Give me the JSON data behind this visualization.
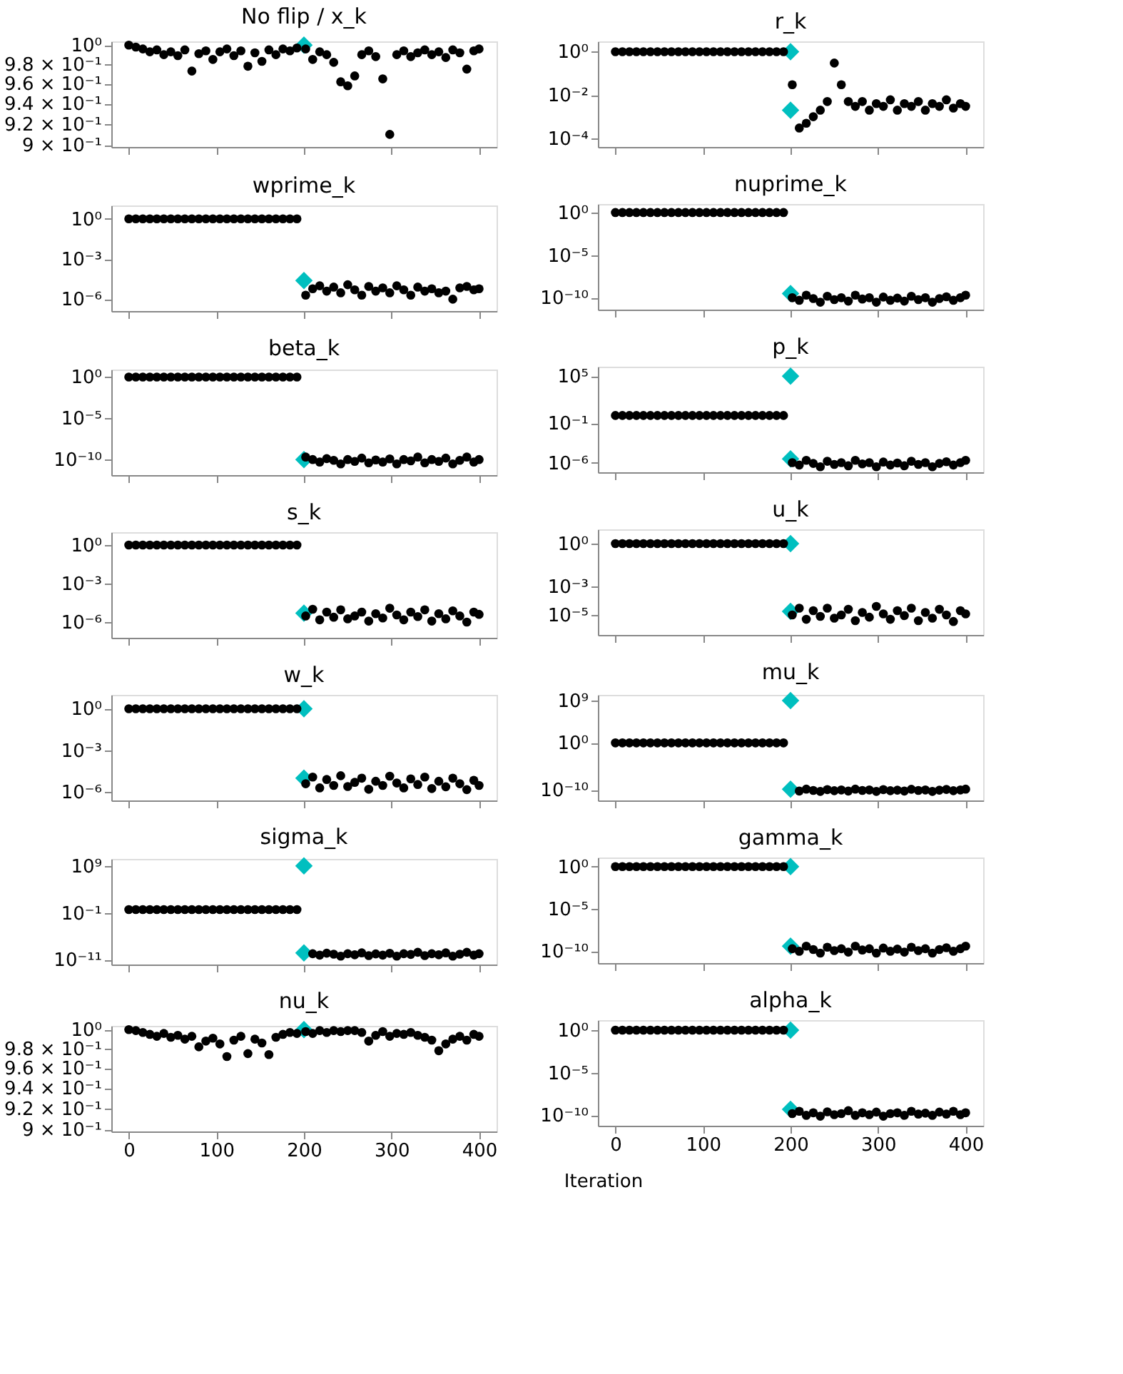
{
  "chart_data": [
    {
      "type": "scatter",
      "title": "No flip / x_k",
      "xlim": [
        -20,
        420
      ],
      "xticks": [
        0,
        100,
        200,
        300,
        400
      ],
      "ylim": [
        0.898,
        1.004
      ],
      "log": "y",
      "tick_labels": "y",
      "yticks": [
        {
          "value": 0.9,
          "label": "9 × 10⁻¹"
        },
        {
          "value": 0.92,
          "label": "9.2 × 10⁻¹"
        },
        {
          "value": 0.94,
          "label": "9.4 × 10⁻¹"
        },
        {
          "value": 0.96,
          "label": "9.6 × 10⁻¹"
        },
        {
          "value": 0.98,
          "label": "9.8 × 10⁻¹"
        },
        {
          "value": 1,
          "label": "10⁰"
        }
      ],
      "series": [
        {
          "color": "#000000",
          "marker": "circle",
          "x": [
            0,
            8,
            16,
            24,
            32,
            40,
            48,
            56,
            64,
            72,
            80,
            88,
            96,
            104,
            112,
            120,
            128,
            136,
            144,
            152,
            160,
            168,
            176,
            184,
            192,
            202,
            210,
            218,
            226,
            234,
            242,
            250,
            258,
            266,
            274,
            282,
            290,
            298,
            306,
            314,
            322,
            330,
            338,
            346,
            354,
            362,
            370,
            378,
            386,
            394,
            400
          ],
          "values": [
            1.0,
            0.998,
            0.996,
            0.993,
            0.995,
            0.99,
            0.993,
            0.989,
            0.995,
            0.973,
            0.991,
            0.994,
            0.985,
            0.993,
            0.996,
            0.989,
            0.994,
            0.978,
            0.992,
            0.983,
            0.995,
            0.99,
            0.996,
            0.994,
            0.997,
            0.996,
            0.985,
            0.993,
            0.99,
            0.982,
            0.962,
            0.958,
            0.968,
            0.99,
            0.994,
            0.988,
            0.965,
            0.91,
            0.99,
            0.994,
            0.988,
            0.992,
            0.995,
            0.99,
            0.993,
            0.987,
            0.995,
            0.992,
            0.975,
            0.994,
            0.996
          ]
        },
        {
          "color": "#00bfbf",
          "marker": "diamond",
          "x": [
            200
          ],
          "values": [
            1
          ]
        }
      ]
    },
    {
      "type": "scatter",
      "title": "r_k",
      "xlim": [
        -20,
        420
      ],
      "xticks": [
        0,
        100,
        200,
        300,
        400
      ],
      "ylim": [
        4e-05,
        3
      ],
      "log": "y",
      "tick_labels": "y",
      "yticks": [
        {
          "value": 0.0001,
          "label": "10⁻⁴"
        },
        {
          "value": 0.01,
          "label": "10⁻²"
        },
        {
          "value": 1,
          "label": "10⁰"
        }
      ],
      "series": [
        {
          "color": "#000000",
          "marker": "circle",
          "x": [
            0,
            8,
            16,
            24,
            32,
            40,
            48,
            56,
            64,
            72,
            80,
            88,
            96,
            104,
            112,
            120,
            128,
            136,
            144,
            152,
            160,
            168,
            176,
            184,
            192,
            202,
            210,
            218,
            226,
            234,
            242,
            250,
            258,
            266,
            274,
            282,
            290,
            298,
            306,
            314,
            322,
            330,
            338,
            346,
            354,
            362,
            370,
            378,
            386,
            394,
            400
          ],
          "values": [
            1,
            1,
            1,
            1,
            1,
            1,
            1,
            1,
            1,
            1,
            1,
            1,
            1,
            1,
            1,
            1,
            1,
            1,
            1,
            1,
            1,
            1,
            1,
            1,
            1,
            0.03,
            0.0003,
            0.0005,
            0.001,
            0.002,
            0.005,
            0.3,
            0.03,
            0.005,
            0.003,
            0.005,
            0.002,
            0.004,
            0.003,
            0.006,
            0.002,
            0.004,
            0.003,
            0.005,
            0.002,
            0.004,
            0.003,
            0.006,
            0.0025,
            0.004,
            0.003
          ]
        },
        {
          "color": "#00bfbf",
          "marker": "diamond",
          "x": [
            200,
            200
          ],
          "values": [
            1,
            0.002
          ]
        }
      ]
    },
    {
      "type": "scatter",
      "title": "wprime_k",
      "xlim": [
        -20,
        420
      ],
      "xticks": [
        0,
        100,
        200,
        300,
        400
      ],
      "ylim": [
        1.3e-07,
        10
      ],
      "log": "y",
      "tick_labels": "y",
      "yticks": [
        {
          "value": 1e-06,
          "label": "10⁻⁶"
        },
        {
          "value": 0.001,
          "label": "10⁻³"
        },
        {
          "value": 1,
          "label": "10⁰"
        }
      ],
      "series": [
        {
          "color": "#000000",
          "marker": "circle",
          "x": [
            0,
            8,
            16,
            24,
            32,
            40,
            48,
            56,
            64,
            72,
            80,
            88,
            96,
            104,
            112,
            120,
            128,
            136,
            144,
            152,
            160,
            168,
            176,
            184,
            192,
            202,
            210,
            218,
            226,
            234,
            242,
            250,
            258,
            266,
            274,
            282,
            290,
            298,
            306,
            314,
            322,
            330,
            338,
            346,
            354,
            362,
            370,
            378,
            386,
            394,
            400
          ],
          "values": [
            1,
            1,
            1,
            1,
            1,
            1,
            1,
            1,
            1,
            1,
            1,
            1,
            1,
            1,
            1,
            1,
            1,
            1,
            1,
            1,
            1,
            1,
            1,
            1,
            1,
            2e-06,
            6e-06,
            1e-05,
            4e-06,
            8e-06,
            3e-06,
            1.2e-05,
            5e-06,
            2e-06,
            9e-06,
            4e-06,
            7e-06,
            3e-06,
            1e-05,
            5e-06,
            2e-06,
            8e-06,
            4e-06,
            6e-06,
            3e-06,
            4e-06,
            1e-06,
            7e-06,
            9e-06,
            5e-06,
            6e-06
          ]
        },
        {
          "color": "#00bfbf",
          "marker": "diamond",
          "x": [
            200
          ],
          "values": [
            2.5e-05
          ]
        }
      ]
    },
    {
      "type": "scatter",
      "title": "nuprime_k",
      "xlim": [
        -20,
        420
      ],
      "xticks": [
        0,
        100,
        200,
        300,
        400
      ],
      "ylim": [
        4e-12,
        10
      ],
      "log": "y",
      "tick_labels": "y",
      "yticks": [
        {
          "value": 1e-10,
          "label": "10⁻¹⁰"
        },
        {
          "value": 1e-05,
          "label": "10⁻⁵"
        },
        {
          "value": 1,
          "label": "10⁰"
        }
      ],
      "series": [
        {
          "color": "#000000",
          "marker": "circle",
          "x": [
            0,
            8,
            16,
            24,
            32,
            40,
            48,
            56,
            64,
            72,
            80,
            88,
            96,
            104,
            112,
            120,
            128,
            136,
            144,
            152,
            160,
            168,
            176,
            184,
            192,
            202,
            210,
            218,
            226,
            234,
            242,
            250,
            258,
            266,
            274,
            282,
            290,
            298,
            306,
            314,
            322,
            330,
            338,
            346,
            354,
            362,
            370,
            378,
            386,
            394,
            400
          ],
          "values": [
            1,
            1,
            1,
            1,
            1,
            1,
            1,
            1,
            1,
            1,
            1,
            1,
            1,
            1,
            1,
            1,
            1,
            1,
            1,
            1,
            1,
            1,
            1,
            1,
            1,
            1e-10,
            5e-11,
            2e-10,
            8e-11,
            3e-11,
            1.5e-10,
            6e-11,
            1e-10,
            4e-11,
            2e-10,
            7e-11,
            1e-10,
            3e-11,
            1.2e-10,
            5e-11,
            9e-11,
            4e-11,
            1.5e-10,
            6e-11,
            1e-10,
            3e-11,
            8e-11,
            1.3e-10,
            5e-11,
            1e-10,
            2e-10
          ]
        },
        {
          "color": "#00bfbf",
          "marker": "diamond",
          "x": [
            200
          ],
          "values": [
            3e-10
          ]
        }
      ]
    },
    {
      "type": "scatter",
      "title": "beta_k",
      "xlim": [
        -20,
        420
      ],
      "xticks": [
        0,
        100,
        200,
        300,
        400
      ],
      "ylim": [
        1.3e-12,
        8
      ],
      "log": "y",
      "tick_labels": "y",
      "yticks": [
        {
          "value": 1e-10,
          "label": "10⁻¹⁰"
        },
        {
          "value": 1e-05,
          "label": "10⁻⁵"
        },
        {
          "value": 1,
          "label": "10⁰"
        }
      ],
      "series": [
        {
          "color": "#000000",
          "marker": "circle",
          "x": [
            0,
            8,
            16,
            24,
            32,
            40,
            48,
            56,
            64,
            72,
            80,
            88,
            96,
            104,
            112,
            120,
            128,
            136,
            144,
            152,
            160,
            168,
            176,
            184,
            192,
            202,
            210,
            218,
            226,
            234,
            242,
            250,
            258,
            266,
            274,
            282,
            290,
            298,
            306,
            314,
            322,
            330,
            338,
            346,
            354,
            362,
            370,
            378,
            386,
            394,
            400
          ],
          "values": [
            1,
            1,
            1,
            1,
            1,
            1,
            1,
            1,
            1,
            1,
            1,
            1,
            1,
            1,
            1,
            1,
            1,
            1,
            1,
            1,
            1,
            1,
            1,
            1,
            1,
            2e-10,
            1e-10,
            5e-11,
            1.3e-10,
            8e-11,
            3e-11,
            1e-10,
            6e-11,
            1.5e-10,
            4e-11,
            9e-11,
            5e-11,
            1.2e-10,
            3e-11,
            1e-10,
            7e-11,
            2e-10,
            4e-11,
            1e-10,
            6e-11,
            1.5e-10,
            3e-11,
            8e-11,
            2e-10,
            5e-11,
            1e-10
          ]
        },
        {
          "color": "#00bfbf",
          "marker": "diamond",
          "x": [
            200
          ],
          "values": [
            1e-10
          ]
        }
      ]
    },
    {
      "type": "scatter",
      "title": "p_k",
      "xlim": [
        -20,
        420
      ],
      "xticks": [
        0,
        100,
        200,
        300,
        400
      ],
      "ylim": [
        6e-08,
        1600000.0
      ],
      "log": "y",
      "tick_labels": "y",
      "yticks": [
        {
          "value": 1e-06,
          "label": "10⁻⁶"
        },
        {
          "value": 0.1,
          "label": "10⁻¹"
        },
        {
          "value": 100000,
          "label": "10⁵"
        }
      ],
      "series": [
        {
          "color": "#000000",
          "marker": "circle",
          "x": [
            0,
            8,
            16,
            24,
            32,
            40,
            48,
            56,
            64,
            72,
            80,
            88,
            96,
            104,
            112,
            120,
            128,
            136,
            144,
            152,
            160,
            168,
            176,
            184,
            192,
            202,
            210,
            218,
            226,
            234,
            242,
            250,
            258,
            266,
            274,
            282,
            290,
            298,
            306,
            314,
            322,
            330,
            338,
            346,
            354,
            362,
            370,
            378,
            386,
            394,
            400
          ],
          "values": [
            1,
            1,
            1,
            1,
            1,
            1,
            1,
            1,
            1,
            1,
            1,
            1,
            1,
            1,
            1,
            1,
            1,
            1,
            1,
            1,
            1,
            1,
            1,
            1,
            1,
            1e-06,
            5e-07,
            2e-06,
            8e-07,
            3e-07,
            1.5e-06,
            6e-07,
            1e-06,
            4e-07,
            2e-06,
            7e-07,
            1e-06,
            3e-07,
            1.2e-06,
            5e-07,
            9e-07,
            4e-07,
            1.5e-06,
            6e-07,
            1e-06,
            3e-07,
            8e-07,
            1.3e-06,
            5e-07,
            1e-06,
            2e-06
          ]
        },
        {
          "color": "#00bfbf",
          "marker": "diamond",
          "x": [
            200,
            200
          ],
          "values": [
            100000,
            3e-06
          ]
        }
      ]
    },
    {
      "type": "scatter",
      "title": "s_k",
      "xlim": [
        -20,
        420
      ],
      "xticks": [
        0,
        100,
        200,
        300,
        400
      ],
      "ylim": [
        6e-08,
        10
      ],
      "log": "y",
      "tick_labels": "y",
      "yticks": [
        {
          "value": 1e-06,
          "label": "10⁻⁶"
        },
        {
          "value": 0.001,
          "label": "10⁻³"
        },
        {
          "value": 1,
          "label": "10⁰"
        }
      ],
      "series": [
        {
          "color": "#000000",
          "marker": "circle",
          "x": [
            0,
            8,
            16,
            24,
            32,
            40,
            48,
            56,
            64,
            72,
            80,
            88,
            96,
            104,
            112,
            120,
            128,
            136,
            144,
            152,
            160,
            168,
            176,
            184,
            192,
            202,
            210,
            218,
            226,
            234,
            242,
            250,
            258,
            266,
            274,
            282,
            290,
            298,
            306,
            314,
            322,
            330,
            338,
            346,
            354,
            362,
            370,
            378,
            386,
            394,
            400
          ],
          "values": [
            1,
            1,
            1,
            1,
            1,
            1,
            1,
            1,
            1,
            1,
            1,
            1,
            1,
            1,
            1,
            1,
            1,
            1,
            1,
            1,
            1,
            1,
            1,
            1,
            1,
            3e-06,
            1e-05,
            1.5e-06,
            6e-06,
            2.4e-06,
            9e-06,
            1.8e-06,
            3e-06,
            6e-06,
            1.2e-06,
            4.5e-06,
            2.1e-06,
            1.2e-05,
            3.6e-06,
            1.5e-06,
            6e-06,
            2.7e-06,
            9e-06,
            1.2e-06,
            4.5e-06,
            1.8e-06,
            7.5e-06,
            3e-06,
            1e-06,
            6e-06,
            4e-06
          ]
        },
        {
          "color": "#00bfbf",
          "marker": "diamond",
          "x": [
            200
          ],
          "values": [
            5e-06
          ]
        }
      ]
    },
    {
      "type": "scatter",
      "title": "u_k",
      "xlim": [
        -20,
        420
      ],
      "xticks": [
        0,
        100,
        200,
        300,
        400
      ],
      "ylim": [
        4e-07,
        10
      ],
      "log": "y",
      "tick_labels": "y",
      "yticks": [
        {
          "value": 1e-05,
          "label": "10⁻⁵"
        },
        {
          "value": 0.001,
          "label": "10⁻³"
        },
        {
          "value": 1,
          "label": "10⁰"
        }
      ],
      "series": [
        {
          "color": "#000000",
          "marker": "circle",
          "x": [
            0,
            8,
            16,
            24,
            32,
            40,
            48,
            56,
            64,
            72,
            80,
            88,
            96,
            104,
            112,
            120,
            128,
            136,
            144,
            152,
            160,
            168,
            176,
            184,
            192,
            202,
            210,
            218,
            226,
            234,
            242,
            250,
            258,
            266,
            274,
            282,
            290,
            298,
            306,
            314,
            322,
            330,
            338,
            346,
            354,
            362,
            370,
            378,
            386,
            394,
            400
          ],
          "values": [
            1,
            1,
            1,
            1,
            1,
            1,
            1,
            1,
            1,
            1,
            1,
            1,
            1,
            1,
            1,
            1,
            1,
            1,
            1,
            1,
            1,
            1,
            1,
            1,
            1,
            1e-05,
            3e-05,
            5e-06,
            2e-05,
            8e-06,
            3e-05,
            6e-06,
            1e-05,
            2.5e-05,
            4e-06,
            1.5e-05,
            7e-06,
            4e-05,
            1.2e-05,
            5e-06,
            2e-05,
            9e-06,
            3e-05,
            4e-06,
            1.5e-05,
            6e-06,
            2.5e-05,
            1e-05,
            3.5e-06,
            2e-05,
            1.2e-05
          ]
        },
        {
          "color": "#00bfbf",
          "marker": "diamond",
          "x": [
            200,
            200
          ],
          "values": [
            1,
            1.8e-05
          ]
        }
      ]
    },
    {
      "type": "scatter",
      "title": "w_k",
      "xlim": [
        -20,
        420
      ],
      "xticks": [
        0,
        100,
        200,
        300,
        400
      ],
      "ylim": [
        2.5e-07,
        10
      ],
      "log": "y",
      "tick_labels": "y",
      "yticks": [
        {
          "value": 1e-06,
          "label": "10⁻⁶"
        },
        {
          "value": 0.001,
          "label": "10⁻³"
        },
        {
          "value": 1,
          "label": "10⁰"
        }
      ],
      "series": [
        {
          "color": "#000000",
          "marker": "circle",
          "x": [
            0,
            8,
            16,
            24,
            32,
            40,
            48,
            56,
            64,
            72,
            80,
            88,
            96,
            104,
            112,
            120,
            128,
            136,
            144,
            152,
            160,
            168,
            176,
            184,
            192,
            202,
            210,
            218,
            226,
            234,
            242,
            250,
            258,
            266,
            274,
            282,
            290,
            298,
            306,
            314,
            322,
            330,
            338,
            346,
            354,
            362,
            370,
            378,
            386,
            394,
            400
          ],
          "values": [
            1,
            1,
            1,
            1,
            1,
            1,
            1,
            1,
            1,
            1,
            1,
            1,
            1,
            1,
            1,
            1,
            1,
            1,
            1,
            1,
            1,
            1,
            1,
            1,
            1,
            4e-06,
            1.2e-05,
            2e-06,
            8e-06,
            3e-06,
            1.5e-05,
            2.5e-06,
            5e-06,
            1e-05,
            1.6e-06,
            6e-06,
            3e-06,
            1.4e-05,
            4.5e-06,
            2e-06,
            9e-06,
            3.5e-06,
            1.2e-05,
            1.8e-06,
            6e-06,
            2.4e-06,
            1e-05,
            4e-06,
            1.5e-06,
            7e-06,
            3e-06
          ]
        },
        {
          "color": "#00bfbf",
          "marker": "diamond",
          "x": [
            200,
            200
          ],
          "values": [
            1,
            1e-05
          ]
        }
      ]
    },
    {
      "type": "scatter",
      "title": "mu_k",
      "xlim": [
        -20,
        420
      ],
      "xticks": [
        0,
        100,
        200,
        300,
        400
      ],
      "ylim": [
        6e-13,
        16000000000.0
      ],
      "log": "y",
      "tick_labels": "y",
      "yticks": [
        {
          "value": 1e-10,
          "label": "10⁻¹⁰"
        },
        {
          "value": 1,
          "label": "10⁰"
        },
        {
          "value": 1000000000,
          "label": "10⁹"
        }
      ],
      "series": [
        {
          "color": "#000000",
          "marker": "circle",
          "x": [
            0,
            8,
            16,
            24,
            32,
            40,
            48,
            56,
            64,
            72,
            80,
            88,
            96,
            104,
            112,
            120,
            128,
            136,
            144,
            152,
            160,
            168,
            176,
            184,
            192,
            210,
            218,
            226,
            234,
            242,
            250,
            258,
            266,
            274,
            282,
            290,
            298,
            306,
            314,
            322,
            330,
            338,
            346,
            354,
            362,
            370,
            378,
            386,
            394,
            400
          ],
          "values": [
            1,
            1,
            1,
            1,
            1,
            1,
            1,
            1,
            1,
            1,
            1,
            1,
            1,
            1,
            1,
            1,
            1,
            1,
            1,
            1,
            1,
            1,
            1,
            1,
            1,
            6e-11,
            1.5e-10,
            8e-11,
            5e-11,
            1.2e-10,
            7e-11,
            1e-10,
            6e-11,
            1.5e-10,
            8e-11,
            1e-10,
            5e-11,
            1.2e-10,
            7e-11,
            9e-11,
            6e-11,
            1.4e-10,
            8e-11,
            1e-10,
            5e-11,
            9e-11,
            1.3e-10,
            7e-11,
            1e-10,
            1.5e-10
          ]
        },
        {
          "color": "#00bfbf",
          "marker": "diamond",
          "x": [
            200,
            200
          ],
          "values": [
            1000000000,
            1.5e-10
          ]
        }
      ]
    },
    {
      "type": "scatter",
      "title": "sigma_k",
      "xlim": [
        -20,
        420
      ],
      "xticks": [
        0,
        100,
        200,
        300,
        400
      ],
      "ylim": [
        1e-12,
        30000000000.0
      ],
      "log": "y",
      "tick_labels": "y",
      "yticks": [
        {
          "value": 1e-11,
          "label": "10⁻¹¹"
        },
        {
          "value": 0.1,
          "label": "10⁻¹"
        },
        {
          "value": 1000000000,
          "label": "10⁹"
        }
      ],
      "series": [
        {
          "color": "#000000",
          "marker": "circle",
          "x": [
            0,
            8,
            16,
            24,
            32,
            40,
            48,
            56,
            64,
            72,
            80,
            88,
            96,
            104,
            112,
            120,
            128,
            136,
            144,
            152,
            160,
            168,
            176,
            184,
            192,
            210,
            218,
            226,
            234,
            242,
            250,
            258,
            266,
            274,
            282,
            290,
            298,
            306,
            314,
            322,
            330,
            338,
            346,
            354,
            362,
            370,
            378,
            386,
            394,
            400
          ],
          "values": [
            0.5,
            0.5,
            0.5,
            0.5,
            0.5,
            0.5,
            0.5,
            0.5,
            0.5,
            0.5,
            0.5,
            0.5,
            0.5,
            0.5,
            0.5,
            0.5,
            0.5,
            0.5,
            0.5,
            0.5,
            0.5,
            0.5,
            0.5,
            0.5,
            0.5,
            2e-10,
            1e-10,
            2.6e-10,
            1.6e-10,
            6e-11,
            2e-10,
            1.2e-10,
            3e-10,
            8e-11,
            1.8e-10,
            1e-10,
            2.4e-10,
            6e-11,
            2e-10,
            1.4e-10,
            4e-10,
            8e-11,
            2e-10,
            1.2e-10,
            3e-10,
            6e-11,
            1.6e-10,
            4e-10,
            1e-10,
            2e-10
          ]
        },
        {
          "color": "#00bfbf",
          "marker": "diamond",
          "x": [
            200,
            200
          ],
          "values": [
            1000000000,
            3e-10
          ]
        }
      ]
    },
    {
      "type": "scatter",
      "title": "gamma_k",
      "xlim": [
        -20,
        420
      ],
      "xticks": [
        0,
        100,
        200,
        300,
        400
      ],
      "ylim": [
        4e-12,
        12
      ],
      "log": "y",
      "tick_labels": "y",
      "yticks": [
        {
          "value": 1e-10,
          "label": "10⁻¹⁰"
        },
        {
          "value": 1e-05,
          "label": "10⁻⁵"
        },
        {
          "value": 1,
          "label": "10⁰"
        }
      ],
      "series": [
        {
          "color": "#000000",
          "marker": "circle",
          "x": [
            0,
            8,
            16,
            24,
            32,
            40,
            48,
            56,
            64,
            72,
            80,
            88,
            96,
            104,
            112,
            120,
            128,
            136,
            144,
            152,
            160,
            168,
            176,
            184,
            192,
            202,
            210,
            218,
            226,
            234,
            242,
            250,
            258,
            266,
            274,
            282,
            290,
            298,
            306,
            314,
            322,
            330,
            338,
            346,
            354,
            362,
            370,
            378,
            386,
            394,
            400
          ],
          "values": [
            1,
            1,
            1,
            1,
            1,
            1,
            1,
            1,
            1,
            1,
            1,
            1,
            1,
            1,
            1,
            1,
            1,
            1,
            1,
            1,
            1,
            1,
            1,
            1,
            1,
            2e-10,
            1e-10,
            4e-10,
            1.6e-10,
            6e-11,
            3e-10,
            1.2e-10,
            2e-10,
            8e-11,
            4e-10,
            1.4e-10,
            2e-10,
            6e-11,
            2.4e-10,
            1e-10,
            1.8e-10,
            8e-11,
            3e-10,
            1.2e-10,
            2e-10,
            6e-11,
            1.6e-10,
            2.6e-10,
            1e-10,
            2e-10,
            4e-10
          ]
        },
        {
          "color": "#00bfbf",
          "marker": "diamond",
          "x": [
            200,
            200
          ],
          "values": [
            1,
            4e-10
          ]
        }
      ]
    },
    {
      "type": "scatter",
      "title": "nu_k",
      "xlim": [
        -20,
        420
      ],
      "xticks": [
        0,
        100,
        200,
        300,
        400
      ],
      "ylim": [
        0.898,
        1.004
      ],
      "log": "y",
      "xlabel": "Iteration",
      "yticks": [
        {
          "value": 0.9,
          "label": "9 × 10⁻¹"
        },
        {
          "value": 0.92,
          "label": "9.2 × 10⁻¹"
        },
        {
          "value": 0.94,
          "label": "9.4 × 10⁻¹"
        },
        {
          "value": 0.96,
          "label": "9.6 × 10⁻¹"
        },
        {
          "value": 0.98,
          "label": "9.8 × 10⁻¹"
        },
        {
          "value": 1,
          "label": "10⁰"
        }
      ],
      "series": [
        {
          "color": "#000000",
          "marker": "circle",
          "x": [
            0,
            8,
            16,
            24,
            32,
            40,
            48,
            56,
            64,
            72,
            80,
            88,
            96,
            104,
            112,
            120,
            128,
            136,
            144,
            152,
            160,
            168,
            176,
            184,
            192,
            202,
            210,
            218,
            226,
            234,
            242,
            250,
            258,
            266,
            274,
            282,
            290,
            298,
            306,
            314,
            322,
            330,
            338,
            346,
            354,
            362,
            370,
            378,
            386,
            394,
            400
          ],
          "values": [
            1.0,
            0.999,
            0.997,
            0.995,
            0.993,
            0.996,
            0.992,
            0.994,
            0.99,
            0.993,
            0.982,
            0.988,
            0.991,
            0.985,
            0.972,
            0.989,
            0.993,
            0.975,
            0.99,
            0.986,
            0.974,
            0.992,
            0.995,
            0.997,
            0.996,
            0.998,
            0.996,
            0.999,
            0.997,
            0.999,
            0.998,
            0.999,
            0.999,
            0.997,
            0.988,
            0.994,
            0.998,
            0.993,
            0.996,
            0.995,
            0.997,
            0.994,
            0.992,
            0.989,
            0.978,
            0.985,
            0.99,
            0.993,
            0.989,
            0.995,
            0.993
          ]
        },
        {
          "color": "#00bfbf",
          "marker": "diamond",
          "x": [
            200
          ],
          "values": [
            1
          ]
        }
      ]
    },
    {
      "type": "scatter",
      "title": "alpha_k",
      "xlim": [
        -20,
        420
      ],
      "xticks": [
        0,
        100,
        200,
        300,
        400
      ],
      "ylim": [
        6e-12,
        15
      ],
      "log": "y",
      "yticks": [
        {
          "value": 1e-10,
          "label": "10⁻¹⁰"
        },
        {
          "value": 1e-05,
          "label": "10⁻⁵"
        },
        {
          "value": 1,
          "label": "10⁰"
        }
      ],
      "series": [
        {
          "color": "#000000",
          "marker": "circle",
          "x": [
            0,
            8,
            16,
            24,
            32,
            40,
            48,
            56,
            64,
            72,
            80,
            88,
            96,
            104,
            112,
            120,
            128,
            136,
            144,
            152,
            160,
            168,
            176,
            184,
            192,
            202,
            210,
            218,
            226,
            234,
            242,
            250,
            258,
            266,
            274,
            282,
            290,
            298,
            306,
            314,
            322,
            330,
            338,
            346,
            354,
            362,
            370,
            378,
            386,
            394,
            400
          ],
          "values": [
            1,
            1,
            1,
            1,
            1,
            1,
            1,
            1,
            1,
            1,
            1,
            1,
            1,
            1,
            1,
            1,
            1,
            1,
            1,
            1,
            1,
            1,
            1,
            1,
            1,
            1.6e-10,
            3e-10,
            1e-10,
            2e-10,
            8e-11,
            2.6e-10,
            1.2e-10,
            1.6e-10,
            3.5e-10,
            1e-10,
            2e-10,
            1.2e-10,
            2.4e-10,
            8e-11,
            1.6e-10,
            2e-10,
            1e-10,
            3e-10,
            1.4e-10,
            1.8e-10,
            1e-10,
            2.4e-10,
            1.4e-10,
            3e-10,
            1.2e-10,
            2e-10
          ]
        },
        {
          "color": "#00bfbf",
          "marker": "diamond",
          "x": [
            200,
            200
          ],
          "values": [
            1,
            5e-10
          ]
        }
      ]
    }
  ]
}
